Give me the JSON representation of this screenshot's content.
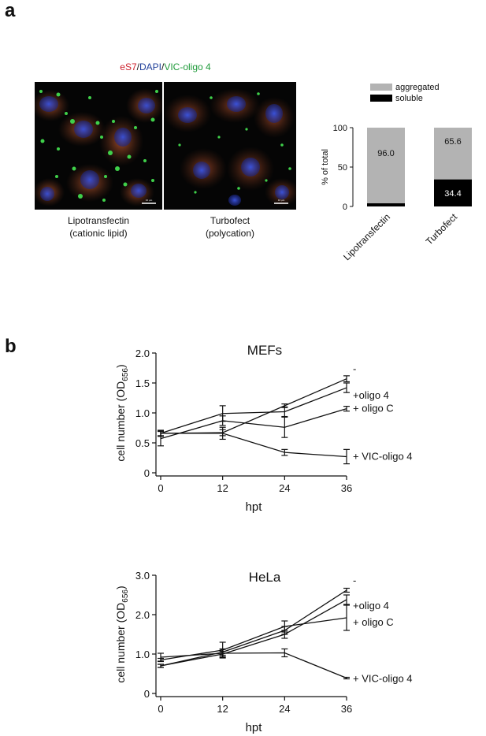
{
  "panel_a": {
    "letter": "a",
    "stain_title": {
      "part1": "eS7",
      "sep1": "/",
      "part2": "DAPI",
      "sep2": "/",
      "part3": "VIC-oligo 4"
    },
    "images": [
      {
        "line1": "Lipotransfectin",
        "line2": "(cationic lipid)",
        "scale_bar": "10 µm"
      },
      {
        "line1": "Turbofect",
        "line2": "(polycation)",
        "scale_bar": "10 µm"
      }
    ],
    "colors": {
      "eS7": "#cc1f2a",
      "DAPI": "#1f3f9a",
      "VIC": "#1f9a3a"
    }
  },
  "panel_b": {
    "letter": "b"
  },
  "chart_data": [
    {
      "type": "bar",
      "stacked": true,
      "categories": [
        "Lipotransfectin",
        "Turbofect"
      ],
      "series": [
        {
          "name": "soluble",
          "values": [
            4.0,
            34.4
          ],
          "color": "#000000",
          "label_values": [
            null,
            "34.4"
          ]
        },
        {
          "name": "aggregated",
          "values": [
            96.0,
            65.6
          ],
          "color": "#b3b3b3",
          "label_values": [
            "96.0",
            "65.6"
          ]
        }
      ],
      "ylabel": "% of total",
      "ylim": [
        0,
        100
      ],
      "yticks": [
        0,
        50,
        100
      ],
      "legend": [
        "aggregated",
        "soluble"
      ],
      "legend_position": "top"
    },
    {
      "type": "line",
      "title": "MEFs",
      "xlabel": "hpt",
      "ylabel": "cell number (OD",
      "ylabel_sub": "656",
      "ylabel_end": ")",
      "x": [
        0,
        12,
        24,
        36
      ],
      "xlim": [
        0,
        36
      ],
      "ylim": [
        0,
        2.0
      ],
      "yticks": [
        "0",
        "0.5",
        "1.0",
        "1.5",
        "2.0"
      ],
      "xticks": [
        "0",
        "12",
        "24",
        "36"
      ],
      "series": [
        {
          "name": "-",
          "values": [
            0.66,
            0.67,
            1.12,
            1.57
          ],
          "errors": [
            0.04,
            0.05,
            0.03,
            0.05
          ]
        },
        {
          "name": "+oligo 4",
          "values": [
            0.66,
            0.99,
            1.02,
            1.42
          ],
          "errors": [
            0.05,
            0.13,
            0.08,
            0.08
          ]
        },
        {
          "name": "+ oligo C",
          "values": [
            0.57,
            0.87,
            0.76,
            1.07
          ],
          "errors": [
            0.12,
            0.08,
            0.17,
            0.04
          ]
        },
        {
          "name": "+ VIC-oligo 4",
          "values": [
            0.66,
            0.66,
            0.34,
            0.27
          ],
          "errors": [
            0.05,
            0.1,
            0.05,
            0.12
          ]
        }
      ]
    },
    {
      "type": "line",
      "title": "HeLa",
      "xlabel": "hpt",
      "ylabel": "cell number (OD",
      "ylabel_sub": "656",
      "ylabel_end": ")",
      "x": [
        0,
        12,
        24,
        36
      ],
      "xlim": [
        0,
        36
      ],
      "ylim": [
        0,
        3.0
      ],
      "yticks": [
        "0",
        "1.0",
        "2.0",
        "3.0"
      ],
      "xticks": [
        "0",
        "12",
        "24",
        "36"
      ],
      "series": [
        {
          "name": "-",
          "values": [
            0.7,
            1.05,
            1.6,
            2.62
          ],
          "errors": [
            0.04,
            0.08,
            0.1,
            0.05
          ]
        },
        {
          "name": "+oligo 4",
          "values": [
            0.7,
            1.0,
            1.5,
            2.38
          ],
          "errors": [
            0.04,
            0.07,
            0.1,
            0.12
          ]
        },
        {
          "name": "+ oligo C",
          "values": [
            0.85,
            1.1,
            1.7,
            1.92
          ],
          "errors": [
            0.04,
            0.2,
            0.14,
            0.32
          ]
        },
        {
          "name": "+ VIC-oligo 4",
          "values": [
            0.92,
            1.02,
            1.03,
            0.39
          ],
          "errors": [
            0.1,
            0.1,
            0.1,
            0.02
          ]
        }
      ]
    }
  ]
}
